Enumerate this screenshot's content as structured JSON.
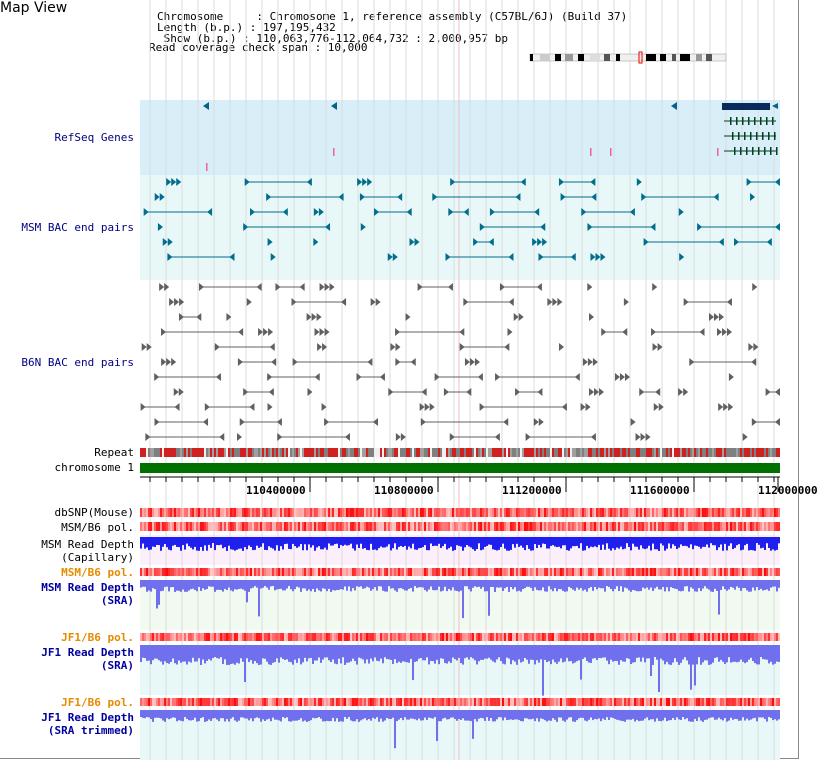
{
  "view": {
    "title": "Map View",
    "chromosome_line": "Chromosome     : Chromosome 1, reference assembly (C57BL/6J) (Build 37)",
    "length_line": "Length (b.p.) : 197,195,432",
    "show_line": " Show (b.p.) : 110,063,776-112,064,732 : 2,000,957 bp",
    "coverage_line": "Read coverage check span : 10,000"
  },
  "tracks": {
    "refseq": "RefSeq Genes",
    "msm_bac": "MSM BAC end pairs",
    "b6n_bac": "B6N BAC end pairs",
    "repeat": "Repeat",
    "chromosome": "chromosome 1",
    "dbsnp": "dbSNP(Mouse)",
    "msm_b6_pol_1": "MSM/B6 pol.",
    "msm_depth_cap_1": "MSM Read Depth",
    "msm_depth_cap_2": "(Capillary)",
    "msm_b6_pol_2": "MSM/B6 pol.",
    "msm_depth_sra_1": "MSM Read Depth",
    "msm_depth_sra_2": "(SRA)",
    "jf1_b6_pol_1": "JF1/B6 pol.",
    "jf1_depth_sra_1": "JF1 Read Depth",
    "jf1_depth_sra_2": "(SRA)",
    "jf1_b6_pol_2": "JF1/B6 pol.",
    "jf1_depth_trim_1": "JF1 Read Depth",
    "jf1_depth_trim_2": "(SRA trimmed)"
  },
  "axis": {
    "ticks": [
      "110400000",
      "110800000",
      "111200000",
      "111600000",
      "112000000"
    ]
  },
  "colors": {
    "refseq_bg": "#d8eef8",
    "bac_bg": "#e8f7f7",
    "msm_sra_bg": "#f0faf0",
    "jf1_bg": "#e8f8f8",
    "capillary_bg": "#fbeffb",
    "chromosome_green": "#007000",
    "depth_blue": "#2020ee",
    "sra_blue": "#7070ee",
    "snp_red": "#ee2020",
    "msm_bac_teal": "#006e8c",
    "b6n_bac_gray": "#606060"
  }
}
